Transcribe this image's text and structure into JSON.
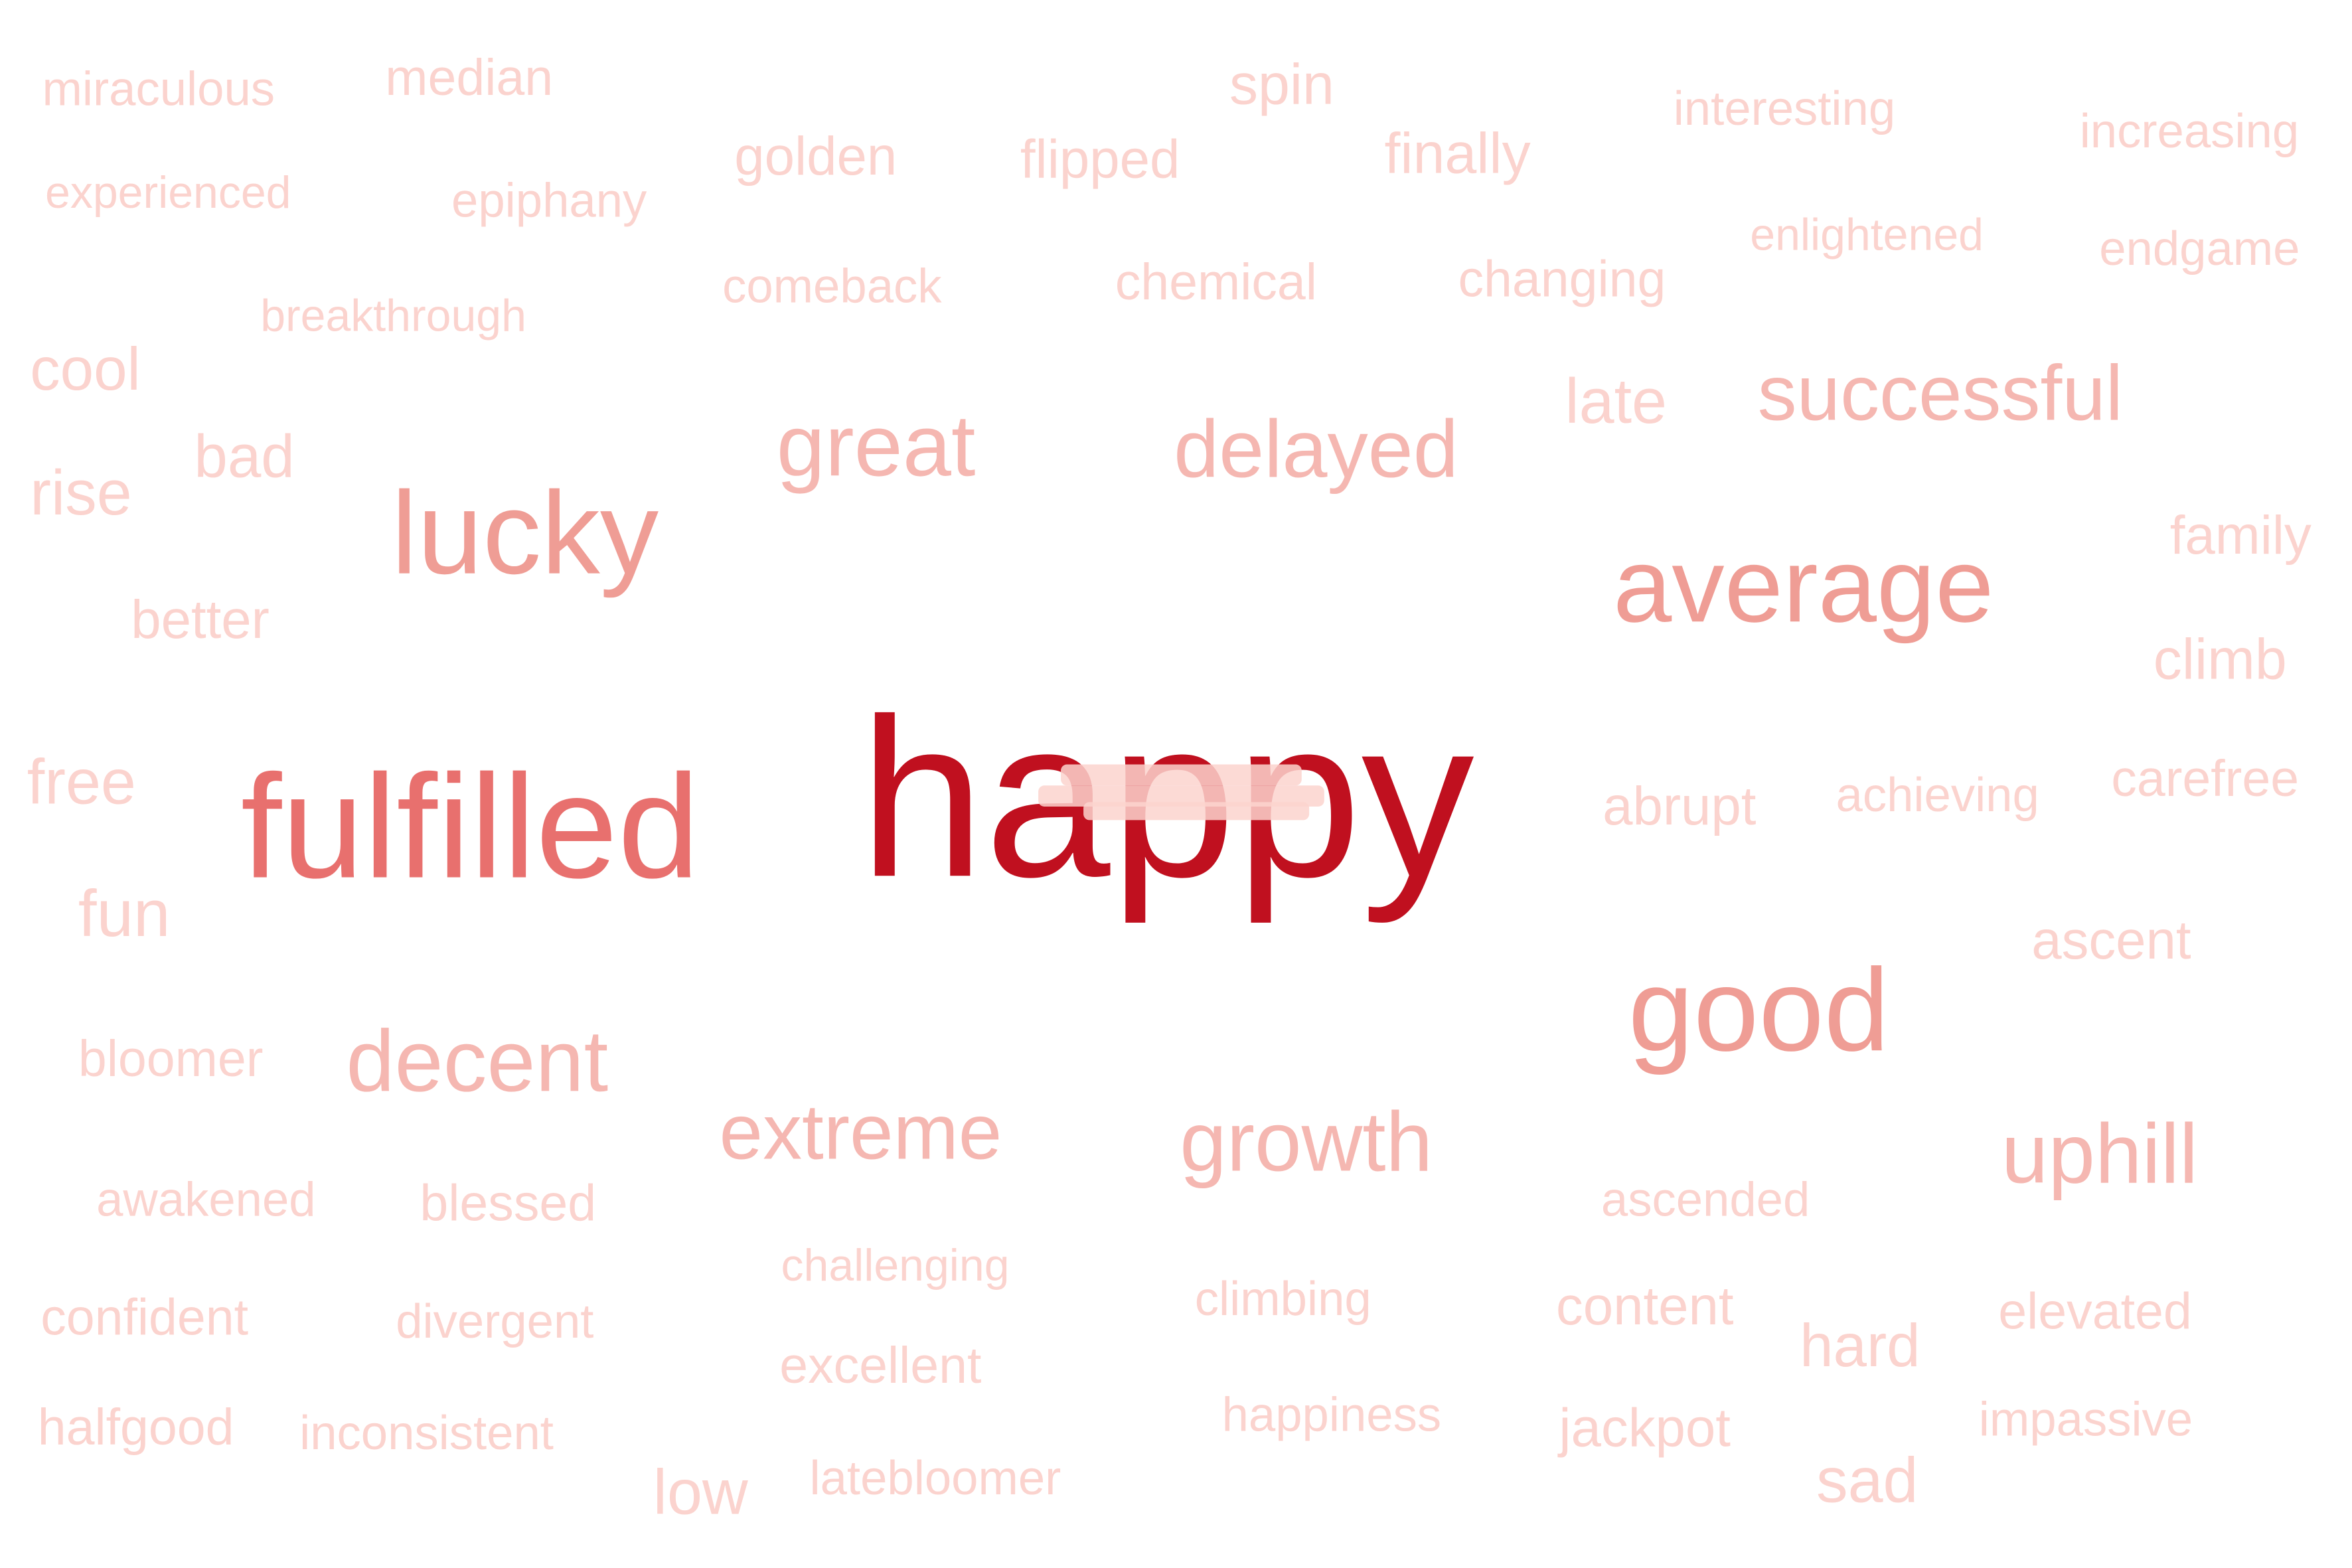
{
  "cloud": {
    "words": [
      {
        "text": "happy",
        "tone": 5
      },
      {
        "text": "fulfilled",
        "tone": 4
      },
      {
        "text": "lucky",
        "tone": 3
      },
      {
        "text": "average",
        "tone": 3
      },
      {
        "text": "good",
        "tone": 3
      },
      {
        "text": "great",
        "tone": 2
      },
      {
        "text": "delayed",
        "tone": 2
      },
      {
        "text": "successful",
        "tone": 2
      },
      {
        "text": "decent",
        "tone": 2
      },
      {
        "text": "extreme",
        "tone": 2
      },
      {
        "text": "growth",
        "tone": 2
      },
      {
        "text": "uphill",
        "tone": 2
      },
      {
        "text": "miraculous",
        "tone": 1
      },
      {
        "text": "median",
        "tone": 1
      },
      {
        "text": "spin",
        "tone": 1
      },
      {
        "text": "interesting",
        "tone": 1
      },
      {
        "text": "increasing",
        "tone": 1
      },
      {
        "text": "experienced",
        "tone": 1
      },
      {
        "text": "golden",
        "tone": 1
      },
      {
        "text": "flipped",
        "tone": 1
      },
      {
        "text": "finally",
        "tone": 1
      },
      {
        "text": "epiphany",
        "tone": 1
      },
      {
        "text": "enlightened",
        "tone": 1
      },
      {
        "text": "endgame",
        "tone": 1
      },
      {
        "text": "comeback",
        "tone": 1
      },
      {
        "text": "chemical",
        "tone": 1
      },
      {
        "text": "changing",
        "tone": 1
      },
      {
        "text": "breakthrough",
        "tone": 1
      },
      {
        "text": "cool",
        "tone": 1
      },
      {
        "text": "late",
        "tone": 1
      },
      {
        "text": "bad",
        "tone": 1
      },
      {
        "text": "rise",
        "tone": 1
      },
      {
        "text": "family",
        "tone": 1
      },
      {
        "text": "better",
        "tone": 1
      },
      {
        "text": "climb",
        "tone": 1
      },
      {
        "text": "free",
        "tone": 1
      },
      {
        "text": "abrupt",
        "tone": 1
      },
      {
        "text": "achieving",
        "tone": 1
      },
      {
        "text": "carefree",
        "tone": 1
      },
      {
        "text": "fun",
        "tone": 1
      },
      {
        "text": "ascent",
        "tone": 1
      },
      {
        "text": "bloomer",
        "tone": 1
      },
      {
        "text": "awakened",
        "tone": 1
      },
      {
        "text": "blessed",
        "tone": 1
      },
      {
        "text": "ascended",
        "tone": 1
      },
      {
        "text": "challenging",
        "tone": 1
      },
      {
        "text": "climbing",
        "tone": 1
      },
      {
        "text": "content",
        "tone": 1
      },
      {
        "text": "elevated",
        "tone": 1
      },
      {
        "text": "confident",
        "tone": 1
      },
      {
        "text": "divergent",
        "tone": 1
      },
      {
        "text": "hard",
        "tone": 1
      },
      {
        "text": "excellent",
        "tone": 1
      },
      {
        "text": "halfgood",
        "tone": 1
      },
      {
        "text": "inconsistent",
        "tone": 1
      },
      {
        "text": "happiness",
        "tone": 1
      },
      {
        "text": "jackpot",
        "tone": 1
      },
      {
        "text": "impassive",
        "tone": 1
      },
      {
        "text": "low",
        "tone": 1
      },
      {
        "text": "latebloomer",
        "tone": 1
      },
      {
        "text": "sad",
        "tone": 1
      }
    ],
    "palette": {
      "5": "#c0101f",
      "4": "#e8706e",
      "3": "#ef9d95",
      "2": "#f5b7b1",
      "1": "#fbd3ce"
    },
    "overlap_cluster_color": "#fbd3ce"
  }
}
